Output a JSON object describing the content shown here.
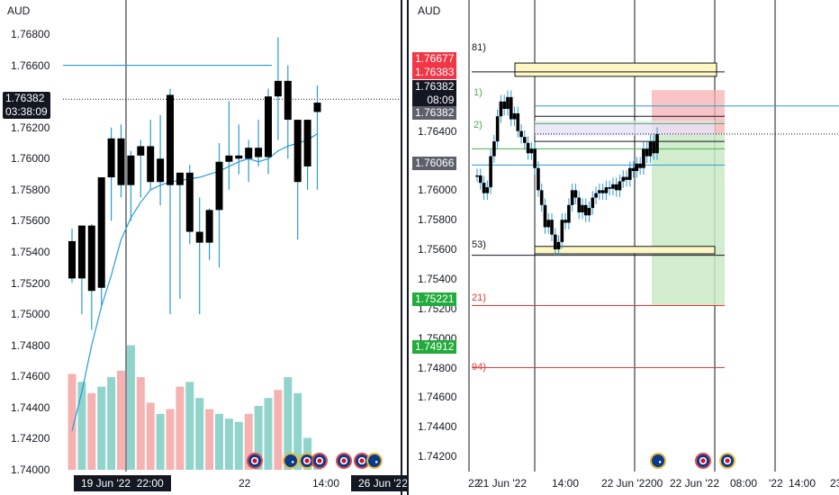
{
  "colors": {
    "candle": "#000000",
    "wick": "#2a9bd6",
    "ma": "#2a9bd6",
    "vol_up": "#7dcdc3",
    "vol_down": "#f4a3a3",
    "gb_flag": "gb-flag-icon",
    "au_flag": "au-flag-icon"
  },
  "left_pane": {
    "symbol": "AUD",
    "price_tag": "1.76382",
    "countdown": "03:38:09",
    "y_ticks": [
      "1.76800",
      "1.76600",
      "1.76400",
      "1.76200",
      "1.76000",
      "1.75800",
      "1.75600",
      "1.75400",
      "1.75200",
      "1.75000",
      "1.74800",
      "1.74600",
      "1.74400",
      "1.74200",
      "1.74000"
    ],
    "x_labels": {
      "date": "19 Jun '22",
      "time": "22:00",
      "day": "22",
      "hour": "14:00",
      "date2": "26 Jun '22"
    },
    "flags": [
      "gb",
      "au",
      "gb",
      "gb",
      "gb",
      "gb",
      "au"
    ]
  },
  "right_pane": {
    "symbol": "AUD",
    "y_ticks": [
      "1.76800",
      "1.76600",
      "1.76400",
      "1.76200",
      "1.76000",
      "1.75800",
      "1.75600",
      "1.75400",
      "1.75200",
      "1.75000",
      "1.74800",
      "1.74600",
      "1.74400",
      "1.74200"
    ],
    "tags": {
      "red_top": "1.76677",
      "red_bottom": "1.76383",
      "black_price": "1.76382",
      "black_countdown": "08:09",
      "gray_price": "1.76382",
      "gray_low": "1.76066",
      "green_1": "1.75221",
      "green_2": "1.74912"
    },
    "levels": {
      "l81": "81)",
      "l1": "1)",
      "l2": "2)",
      "l53": "53)",
      "l21": "21)",
      "l94": "94)"
    },
    "x_labels": [
      "22",
      "21 Jun '22",
      "14:00",
      "22 Jun '22",
      "00",
      "22 Jun '22",
      "08:00",
      "'22",
      "14:00",
      "23"
    ],
    "flags": [
      "au",
      "gb",
      "gb"
    ]
  },
  "chart_data": [
    {
      "type": "candlestick",
      "title": "AUD",
      "ylim": [
        1.74,
        1.768
      ],
      "bar_interval": "1h",
      "candles": [
        {
          "o": 1.7547,
          "h": 1.7555,
          "l": 1.752,
          "c": 1.7523
        },
        {
          "o": 1.7523,
          "h": 1.7557,
          "l": 1.75,
          "c": 1.7557
        },
        {
          "o": 1.7557,
          "h": 1.7558,
          "l": 1.749,
          "c": 1.7515
        },
        {
          "o": 1.7517,
          "h": 1.7588,
          "l": 1.7505,
          "c": 1.7588
        },
        {
          "o": 1.7588,
          "h": 1.762,
          "l": 1.756,
          "c": 1.7613
        },
        {
          "o": 1.7613,
          "h": 1.7622,
          "l": 1.7575,
          "c": 1.7583
        },
        {
          "o": 1.7583,
          "h": 1.7605,
          "l": 1.756,
          "c": 1.7602
        },
        {
          "o": 1.7602,
          "h": 1.7612,
          "l": 1.7575,
          "c": 1.7608
        },
        {
          "o": 1.7608,
          "h": 1.7625,
          "l": 1.758,
          "c": 1.7585
        },
        {
          "o": 1.7585,
          "h": 1.7628,
          "l": 1.757,
          "c": 1.76
        },
        {
          "o": 1.7641,
          "h": 1.7645,
          "l": 1.75,
          "c": 1.7583
        },
        {
          "o": 1.7583,
          "h": 1.759,
          "l": 1.751,
          "c": 1.7591
        },
        {
          "o": 1.7591,
          "h": 1.7596,
          "l": 1.7545,
          "c": 1.7553
        },
        {
          "o": 1.7553,
          "h": 1.7575,
          "l": 1.75,
          "c": 1.7546
        },
        {
          "o": 1.7546,
          "h": 1.7568,
          "l": 1.7535,
          "c": 1.7567
        },
        {
          "o": 1.7567,
          "h": 1.761,
          "l": 1.753,
          "c": 1.7598
        },
        {
          "o": 1.7598,
          "h": 1.7637,
          "l": 1.758,
          "c": 1.7602
        },
        {
          "o": 1.7602,
          "h": 1.7622,
          "l": 1.759,
          "c": 1.76
        },
        {
          "o": 1.76,
          "h": 1.7612,
          "l": 1.7585,
          "c": 1.7607
        },
        {
          "o": 1.7607,
          "h": 1.7625,
          "l": 1.7595,
          "c": 1.7601
        },
        {
          "o": 1.7601,
          "h": 1.7645,
          "l": 1.759,
          "c": 1.764
        },
        {
          "o": 1.764,
          "h": 1.7678,
          "l": 1.7612,
          "c": 1.765
        },
        {
          "o": 1.765,
          "h": 1.766,
          "l": 1.76,
          "c": 1.7625
        },
        {
          "o": 1.7585,
          "h": 1.7625,
          "l": 1.7548,
          "c": 1.7625
        },
        {
          "o": 1.7625,
          "h": 1.7625,
          "l": 1.758,
          "c": 1.7595
        },
        {
          "o": 1.763,
          "h": 1.7647,
          "l": 1.758,
          "c": 1.7636
        }
      ],
      "volume": [
        0.6,
        0.55,
        0.48,
        0.52,
        0.58,
        0.62,
        0.78,
        0.58,
        0.42,
        0.35,
        0.38,
        0.52,
        0.55,
        0.45,
        0.38,
        0.35,
        0.32,
        0.3,
        0.35,
        0.4,
        0.45,
        0.5,
        0.58,
        0.48,
        0.2,
        0.1
      ],
      "volume_up": [
        false,
        true,
        false,
        true,
        true,
        false,
        true,
        false,
        false,
        true,
        false,
        false,
        true,
        true,
        false,
        true,
        true,
        true,
        false,
        true,
        true,
        false,
        true,
        true,
        true,
        true
      ],
      "ma": [
        1.7425,
        1.745,
        1.748,
        1.7505,
        1.7525,
        1.7548,
        1.7562,
        1.7572,
        1.758,
        1.7583,
        1.7585,
        1.7586,
        1.7587,
        1.7588,
        1.759,
        1.7592,
        1.7595,
        1.7598,
        1.76,
        1.7598,
        1.76,
        1.7605,
        1.7608,
        1.761,
        1.7612,
        1.7616
      ],
      "horizontal_lines": [
        1.766,
        1.76382
      ],
      "vertical_line_time": "22:00"
    },
    {
      "type": "candlestick",
      "title": "AUD",
      "ylim": [
        1.7417,
        1.7697
      ],
      "closes": [
        1.761,
        1.7605,
        1.7598,
        1.7602,
        1.7623,
        1.7633,
        1.765,
        1.766,
        1.7655,
        1.7663,
        1.7648,
        1.7652,
        1.764,
        1.7636,
        1.7632,
        1.7625,
        1.7628,
        1.7615,
        1.76,
        1.759,
        1.7575,
        1.758,
        1.757,
        1.756,
        1.7565,
        1.758,
        1.7578,
        1.759,
        1.76,
        1.7595,
        1.7585,
        1.759,
        1.7583,
        1.7588,
        1.7595,
        1.7598,
        1.76,
        1.7598,
        1.7602,
        1.7601,
        1.7604,
        1.76,
        1.7606,
        1.7609,
        1.7607,
        1.7615,
        1.7613,
        1.7618,
        1.7615,
        1.7628,
        1.7623,
        1.7633,
        1.7625,
        1.7638
      ],
      "long_position": {
        "entry": 1.76383,
        "stop": 1.76677,
        "target": 1.75221
      },
      "level_lines": [
        1.768,
        1.766,
        1.765,
        1.7645,
        1.7638,
        1.7628,
        1.7617,
        1.7558,
        1.7522,
        1.748
      ],
      "tagged_prices": [
        1.76677,
        1.76383,
        1.76382,
        1.76066,
        1.75221,
        1.74912
      ]
    }
  ]
}
